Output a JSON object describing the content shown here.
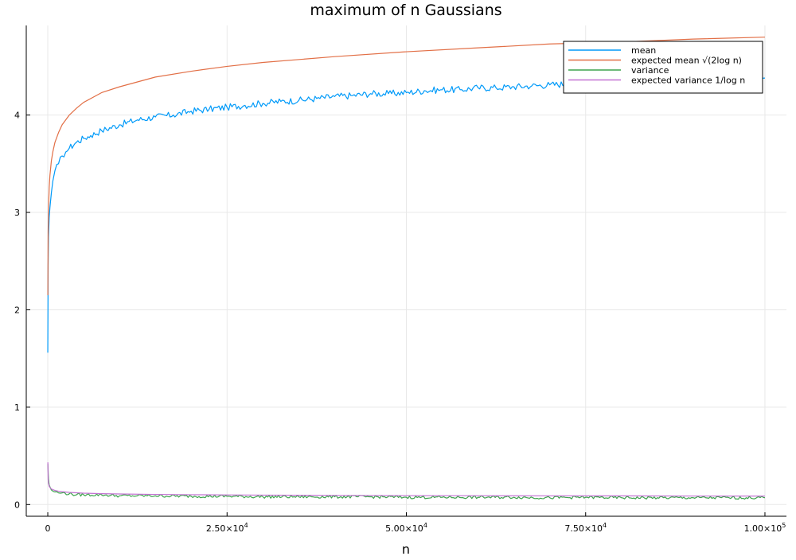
{
  "chart_data": {
    "type": "line",
    "title": "maximum of n Gaussians",
    "xlabel": "n",
    "ylabel": "",
    "xlim": [
      -3000,
      103000
    ],
    "ylim": [
      -0.12,
      4.92
    ],
    "grid": true,
    "legend_position": "top-right",
    "x_ticks": [
      {
        "value": 0,
        "label": "0"
      },
      {
        "value": 25000,
        "label": "2.50×10",
        "exp": "4"
      },
      {
        "value": 50000,
        "label": "5.00×10",
        "exp": "4"
      },
      {
        "value": 75000,
        "label": "7.50×10",
        "exp": "4"
      },
      {
        "value": 100000,
        "label": "1.00×10",
        "exp": "5"
      }
    ],
    "y_ticks": [
      {
        "value": 0,
        "label": "0"
      },
      {
        "value": 1,
        "label": "1"
      },
      {
        "value": 2,
        "label": "2"
      },
      {
        "value": 3,
        "label": "3"
      },
      {
        "value": 4,
        "label": "4"
      }
    ],
    "series": [
      {
        "name": "mean",
        "color": "#009af9",
        "x": [
          1,
          50,
          100,
          200,
          300,
          500,
          700,
          1000,
          1500,
          2000,
          2500,
          3000,
          4000,
          5000,
          6000,
          7500,
          10000,
          12500,
          15000,
          17500,
          20000,
          22500,
          25000,
          27500,
          30000,
          32500,
          35000,
          37500,
          40000,
          42500,
          45000,
          47500,
          50000,
          52500,
          55000,
          57500,
          60000,
          62500,
          65000,
          67500,
          70000,
          72500,
          75000,
          77500,
          80000,
          82500,
          85000,
          87500,
          90000,
          92500,
          95000,
          97500,
          100000
        ],
        "y": [
          1.56,
          2.45,
          2.75,
          2.95,
          3.05,
          3.2,
          3.32,
          3.43,
          3.5,
          3.58,
          3.62,
          3.66,
          3.72,
          3.76,
          3.79,
          3.84,
          3.9,
          3.95,
          3.98,
          4.0,
          4.04,
          4.06,
          4.08,
          4.1,
          4.12,
          4.14,
          4.15,
          4.17,
          4.19,
          4.2,
          4.22,
          4.22,
          4.23,
          4.25,
          4.26,
          4.26,
          4.28,
          4.28,
          4.29,
          4.3,
          4.31,
          4.32,
          4.33,
          4.33,
          4.34,
          4.34,
          4.35,
          4.35,
          4.36,
          4.36,
          4.37,
          4.37,
          4.38
        ]
      },
      {
        "name": "expected mean √(2log n)",
        "color": "#e26f46",
        "x": [
          10,
          50,
          100,
          200,
          300,
          500,
          700,
          1000,
          1500,
          2000,
          3000,
          4000,
          5000,
          7500,
          10000,
          15000,
          20000,
          25000,
          30000,
          40000,
          50000,
          60000,
          70000,
          80000,
          90000,
          100000
        ],
        "y": [
          2.15,
          2.8,
          3.03,
          3.26,
          3.38,
          3.53,
          3.62,
          3.72,
          3.82,
          3.9,
          4.0,
          4.07,
          4.13,
          4.23,
          4.29,
          4.39,
          4.45,
          4.5,
          4.54,
          4.6,
          4.65,
          4.69,
          4.73,
          4.75,
          4.78,
          4.8
        ]
      },
      {
        "name": "variance",
        "color": "#3da44d",
        "x": [
          10,
          100,
          200,
          500,
          1000,
          1500,
          2000,
          3000,
          4000,
          5000,
          7500,
          10000,
          12500,
          15000,
          20000,
          25000,
          30000,
          35000,
          40000,
          45000,
          50000,
          55000,
          60000,
          65000,
          70000,
          75000,
          80000,
          85000,
          90000,
          95000,
          100000
        ],
        "y": [
          0.42,
          0.26,
          0.2,
          0.15,
          0.13,
          0.12,
          0.12,
          0.11,
          0.1,
          0.1,
          0.1,
          0.09,
          0.09,
          0.09,
          0.085,
          0.085,
          0.08,
          0.08,
          0.08,
          0.08,
          0.075,
          0.075,
          0.075,
          0.075,
          0.07,
          0.075,
          0.07,
          0.07,
          0.07,
          0.07,
          0.07
        ]
      },
      {
        "name": "expected variance 1/log n",
        "color": "#c271d2",
        "x": [
          10,
          50,
          100,
          200,
          300,
          500,
          700,
          1000,
          1500,
          2000,
          3000,
          4000,
          5000,
          7500,
          10000,
          15000,
          20000,
          25000,
          30000,
          40000,
          50000,
          60000,
          70000,
          80000,
          90000,
          100000
        ],
        "y": [
          0.434,
          0.256,
          0.217,
          0.189,
          0.175,
          0.161,
          0.153,
          0.145,
          0.137,
          0.132,
          0.125,
          0.121,
          0.117,
          0.112,
          0.109,
          0.104,
          0.101,
          0.099,
          0.097,
          0.094,
          0.092,
          0.091,
          0.09,
          0.089,
          0.088,
          0.087
        ]
      }
    ]
  }
}
